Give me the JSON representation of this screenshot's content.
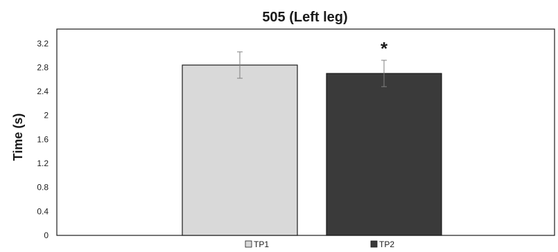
{
  "chart_data": {
    "type": "bar",
    "title": "505 (Left leg)",
    "xlabel": "",
    "ylabel": "Time (s)",
    "ylim": [
      0,
      3.44
    ],
    "yticks": [
      "0",
      "0.4",
      "0.8",
      "1.2",
      "1.6",
      "2",
      "2.4",
      "2.8",
      "3.2"
    ],
    "grid": false,
    "legend_position": "bottom",
    "series": [
      {
        "name": "TP1",
        "values": [
          2.84
        ],
        "error": [
          0.22
        ],
        "color": "#d9d9d9",
        "significance": ""
      },
      {
        "name": "TP2",
        "values": [
          2.7
        ],
        "error": [
          0.22
        ],
        "color": "#3a3a3a",
        "significance": "*"
      }
    ]
  }
}
